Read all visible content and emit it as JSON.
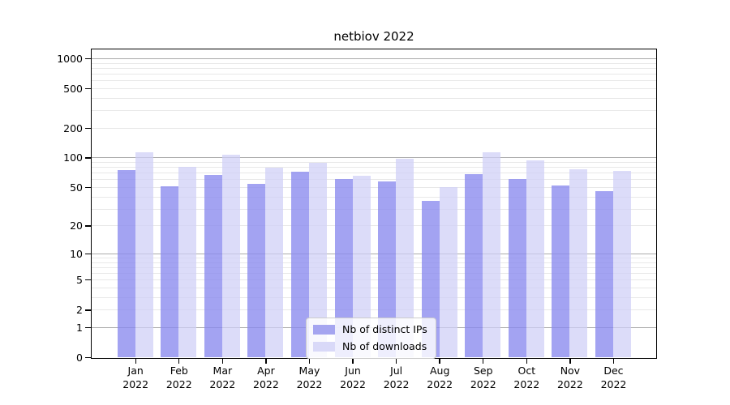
{
  "chart_data": {
    "type": "bar",
    "title": "netbiov 2022",
    "scale": "log1p",
    "grid": true,
    "legend_position": "lower center",
    "months": [
      "Jan",
      "Feb",
      "Mar",
      "Apr",
      "May",
      "Jun",
      "Jul",
      "Aug",
      "Sep",
      "Oct",
      "Nov",
      "Dec"
    ],
    "year_label": "2022",
    "categories": [
      "Jan 2022",
      "Feb 2022",
      "Mar 2022",
      "Apr 2022",
      "May 2022",
      "Jun 2022",
      "Jul 2022",
      "Aug 2022",
      "Sep 2022",
      "Oct 2022",
      "Nov 2022",
      "Dec 2022"
    ],
    "series": [
      {
        "name": "Nb of distinct IPs",
        "color": "rgba(137,137,238,0.78)",
        "solid_color": "#a5a5f0",
        "values": [
          75,
          51,
          67,
          54,
          72,
          60,
          57,
          36,
          68,
          60,
          52,
          45
        ]
      },
      {
        "name": "Nb of downloads",
        "color": "rgba(206,206,246,0.72)",
        "solid_color": "#d9d9f8",
        "values": [
          113,
          80,
          106,
          79,
          89,
          65,
          98,
          50,
          112,
          94,
          76,
          73
        ]
      }
    ],
    "y_ticks": [
      1000,
      500,
      200,
      100,
      50,
      20,
      10,
      5,
      2,
      1,
      0
    ],
    "y_major_gridlines": [
      1000,
      100,
      10,
      1
    ],
    "ylim": [
      0,
      1400
    ],
    "xlabel": "",
    "ylabel": ""
  },
  "colors": {
    "grid_major": "#ababab",
    "grid_minor": "#e8e8e8",
    "spine": "#000000"
  }
}
